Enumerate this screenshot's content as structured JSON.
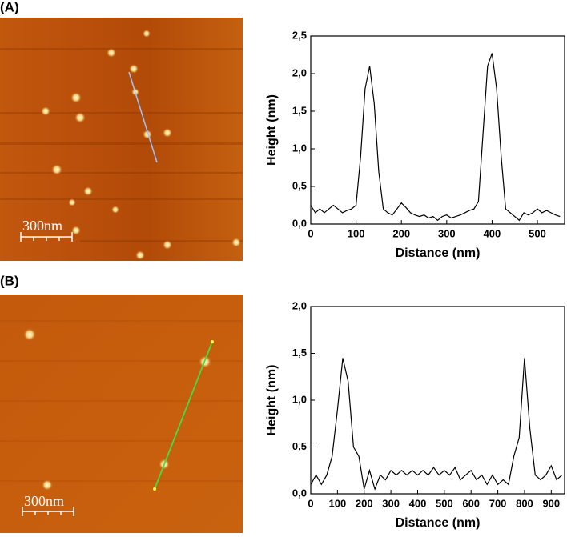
{
  "panels": [
    {
      "label": "(A)",
      "scale_bar": "300nm"
    },
    {
      "label": "(B)",
      "scale_bar": "300nm"
    }
  ],
  "chart_data": [
    {
      "type": "line",
      "x_label": "Distance (nm)",
      "y_label": "Height (nm)",
      "xlim": [
        0,
        560
      ],
      "ylim": [
        0,
        2.5
      ],
      "xticks": [
        0,
        100,
        200,
        300,
        400,
        500
      ],
      "yticks": [
        {
          "value": 0,
          "label": "0,0"
        },
        {
          "value": 0.5,
          "label": "0,5"
        },
        {
          "value": 1,
          "label": "1,0"
        },
        {
          "value": 1.5,
          "label": "1,5"
        },
        {
          "value": 2,
          "label": "2,0"
        },
        {
          "value": 2.5,
          "label": "2,5"
        }
      ],
      "color": "#000000",
      "x": [
        0,
        10,
        20,
        30,
        40,
        50,
        60,
        70,
        80,
        90,
        100,
        110,
        120,
        130,
        140,
        150,
        160,
        170,
        180,
        190,
        200,
        210,
        220,
        230,
        240,
        250,
        260,
        270,
        280,
        290,
        300,
        310,
        320,
        330,
        340,
        350,
        360,
        370,
        380,
        390,
        400,
        410,
        420,
        430,
        440,
        450,
        460,
        470,
        480,
        490,
        500,
        510,
        520,
        530,
        540,
        550
      ],
      "values": [
        0.25,
        0.15,
        0.2,
        0.15,
        0.2,
        0.25,
        0.2,
        0.15,
        0.18,
        0.2,
        0.25,
        0.9,
        1.8,
        2.1,
        1.6,
        0.7,
        0.2,
        0.15,
        0.12,
        0.2,
        0.28,
        0.22,
        0.15,
        0.12,
        0.1,
        0.12,
        0.08,
        0.1,
        0.05,
        0.1,
        0.12,
        0.08,
        0.1,
        0.12,
        0.15,
        0.18,
        0.2,
        0.3,
        1.2,
        2.1,
        2.27,
        1.8,
        0.9,
        0.2,
        0.15,
        0.1,
        0.05,
        0.15,
        0.12,
        0.15,
        0.2,
        0.15,
        0.18,
        0.15,
        0.12,
        0.1
      ]
    },
    {
      "type": "line",
      "x_label": "Distance (nm)",
      "y_label": "Height (nm)",
      "xlim": [
        0,
        950
      ],
      "ylim": [
        0,
        2
      ],
      "xticks": [
        0,
        100,
        200,
        300,
        400,
        500,
        600,
        700,
        800,
        900
      ],
      "yticks": [
        {
          "value": 0,
          "label": "0,0"
        },
        {
          "value": 0.5,
          "label": "0,5"
        },
        {
          "value": 1,
          "label": "1,0"
        },
        {
          "value": 1.5,
          "label": "1,5"
        },
        {
          "value": 2,
          "label": "2,0"
        }
      ],
      "color": "#000000",
      "x": [
        0,
        20,
        40,
        60,
        80,
        100,
        120,
        140,
        160,
        180,
        200,
        220,
        240,
        260,
        280,
        300,
        320,
        340,
        360,
        380,
        400,
        420,
        440,
        460,
        480,
        500,
        520,
        540,
        560,
        580,
        600,
        620,
        640,
        660,
        680,
        700,
        720,
        740,
        760,
        780,
        800,
        820,
        840,
        860,
        880,
        900,
        920,
        940
      ],
      "values": [
        0.1,
        0.2,
        0.1,
        0.2,
        0.4,
        0.9,
        1.45,
        1.2,
        0.5,
        0.4,
        0.05,
        0.25,
        0.05,
        0.2,
        0.15,
        0.25,
        0.2,
        0.25,
        0.2,
        0.25,
        0.2,
        0.25,
        0.2,
        0.28,
        0.2,
        0.25,
        0.2,
        0.28,
        0.15,
        0.2,
        0.25,
        0.15,
        0.2,
        0.1,
        0.2,
        0.1,
        0.15,
        0.1,
        0.4,
        0.6,
        1.45,
        0.7,
        0.2,
        0.15,
        0.2,
        0.3,
        0.15,
        0.2
      ]
    }
  ]
}
